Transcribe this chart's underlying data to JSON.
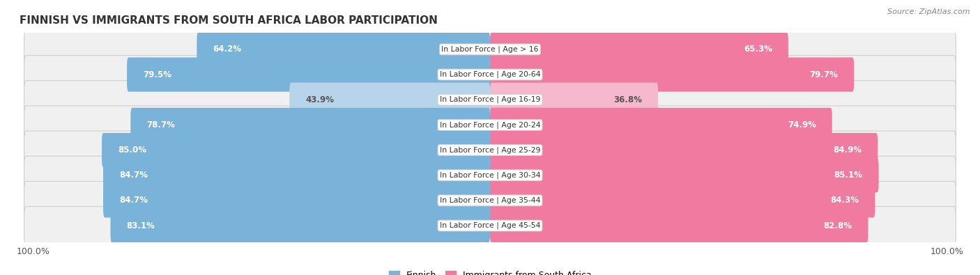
{
  "title": "FINNISH VS IMMIGRANTS FROM SOUTH AFRICA LABOR PARTICIPATION",
  "source": "Source: ZipAtlas.com",
  "categories": [
    "In Labor Force | Age > 16",
    "In Labor Force | Age 20-64",
    "In Labor Force | Age 16-19",
    "In Labor Force | Age 20-24",
    "In Labor Force | Age 25-29",
    "In Labor Force | Age 30-34",
    "In Labor Force | Age 35-44",
    "In Labor Force | Age 45-54"
  ],
  "finnish_values": [
    64.2,
    79.5,
    43.9,
    78.7,
    85.0,
    84.7,
    84.7,
    83.1
  ],
  "immigrant_values": [
    65.3,
    79.7,
    36.8,
    74.9,
    84.9,
    85.1,
    84.3,
    82.8
  ],
  "is_light": [
    false,
    false,
    true,
    false,
    false,
    false,
    false,
    false
  ],
  "finnish_color": "#7ab3d9",
  "finnish_color_light": "#b8d4ea",
  "immigrant_color": "#f07aa0",
  "immigrant_color_light": "#f5b8cc",
  "row_bg_color": "#e8e8e8",
  "row_inner_color": "#f5f5f5",
  "label_color_white": "#ffffff",
  "label_color_dark": "#555555",
  "max_value": 100.0,
  "legend_labels": [
    "Finnish",
    "Immigrants from South Africa"
  ]
}
